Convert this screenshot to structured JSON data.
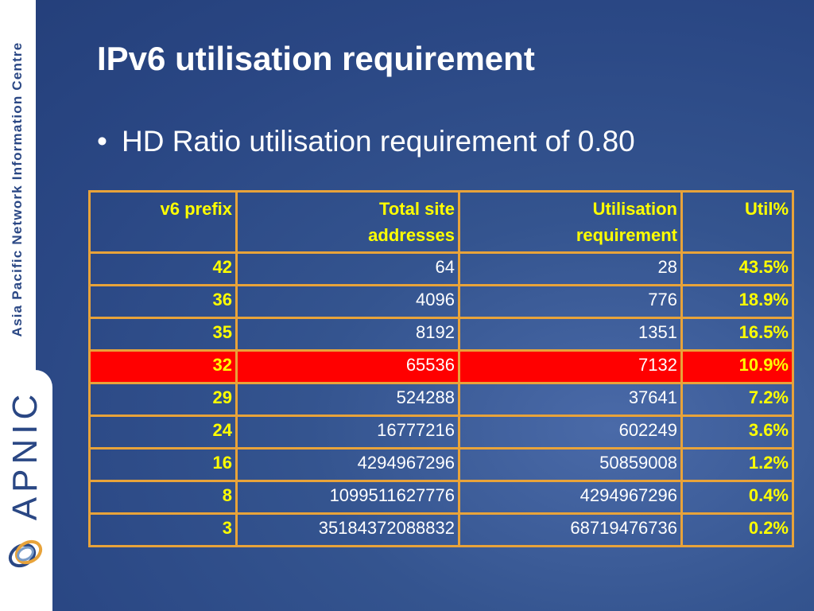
{
  "sidebar": {
    "org_name": "Asia Pacific Network Information Centre",
    "logo_text": "APNIC"
  },
  "title": "IPv6 utilisation requirement",
  "bullets": [
    "HD Ratio utilisation requirement of 0.80"
  ],
  "table": {
    "headers": [
      [
        "v6 prefix"
      ],
      [
        "Total site",
        "addresses"
      ],
      [
        "Utilisation",
        "requirement"
      ],
      [
        "Util%"
      ]
    ],
    "rows": [
      [
        "42",
        "64",
        "28",
        "43.5%"
      ],
      [
        "36",
        "4096",
        "776",
        "18.9%"
      ],
      [
        "35",
        "8192",
        "1351",
        "16.5%"
      ],
      [
        "32",
        "65536",
        "7132",
        "10.9%"
      ],
      [
        "29",
        "524288",
        "37641",
        "7.2%"
      ],
      [
        "24",
        "16777216",
        "602249",
        "3.6%"
      ],
      [
        "16",
        "4294967296",
        "50859008",
        "1.2%"
      ],
      [
        "8",
        "1099511627776",
        "4294967296",
        "0.4%"
      ],
      [
        "3",
        "35184372088832",
        "68719476736",
        "0.2%"
      ]
    ],
    "highlight_rows": [
      3
    ],
    "highlight_color": "#ff0000"
  }
}
